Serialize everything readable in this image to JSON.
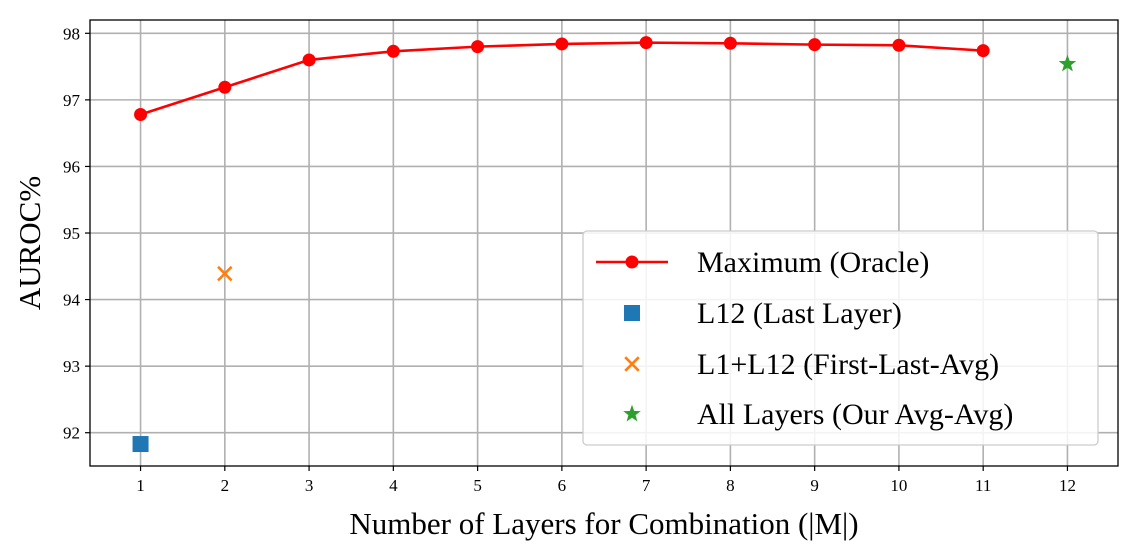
{
  "chart_data": {
    "type": "line",
    "xlabel": "Number of Layers for Combination (|M|)",
    "ylabel": "AUROC%",
    "xlim": [
      0.4,
      12.6
    ],
    "ylim": [
      91.5,
      98.2
    ],
    "x_ticks": [
      "1",
      "2",
      "3",
      "4",
      "5",
      "6",
      "7",
      "8",
      "9",
      "10",
      "11",
      "12"
    ],
    "y_ticks": [
      "92",
      "93",
      "94",
      "95",
      "96",
      "97",
      "98"
    ],
    "grid": true,
    "legend_position": "lower-right",
    "series": [
      {
        "name": "Maximum (Oracle)",
        "kind": "line",
        "marker": "circle",
        "color": "#ff0000",
        "x": [
          1,
          2,
          3,
          4,
          5,
          6,
          7,
          8,
          9,
          10,
          11
        ],
        "y": [
          96.78,
          97.19,
          97.6,
          97.73,
          97.8,
          97.84,
          97.86,
          97.85,
          97.83,
          97.82,
          97.74
        ]
      },
      {
        "name": "L12 (Last Layer)",
        "kind": "scatter",
        "marker": "square",
        "color": "#1f77b4",
        "x": [
          1
        ],
        "y": [
          91.83
        ]
      },
      {
        "name": "L1+L12 (First-Last-Avg)",
        "kind": "scatter",
        "marker": "x",
        "color": "#ff7f0e",
        "x": [
          2
        ],
        "y": [
          94.39
        ]
      },
      {
        "name": "All Layers (Our Avg-Avg)",
        "kind": "scatter",
        "marker": "star",
        "color": "#2ca02c",
        "x": [
          12
        ],
        "y": [
          97.54
        ]
      }
    ]
  }
}
